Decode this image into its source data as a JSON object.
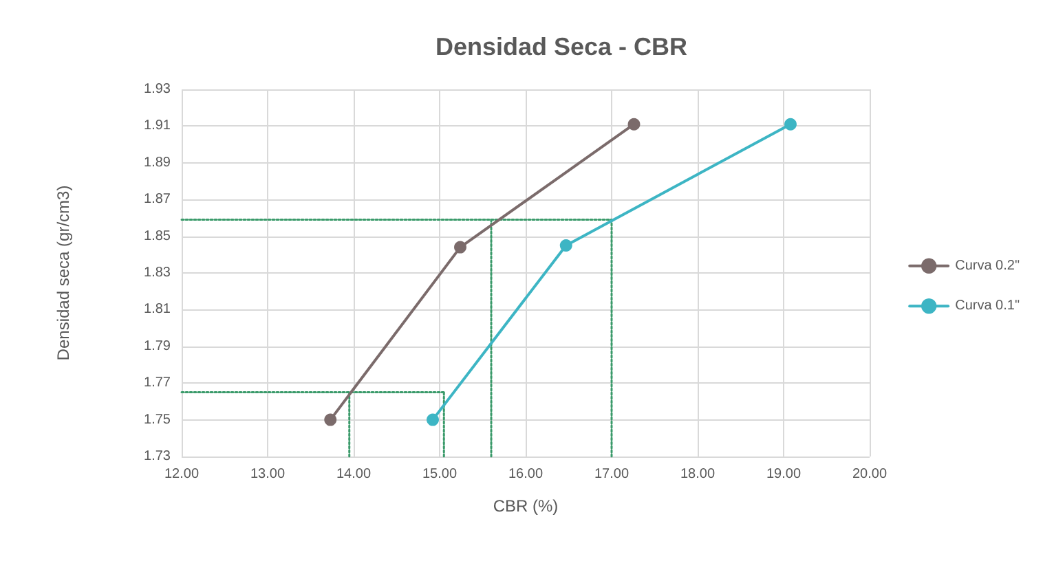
{
  "chart_data": {
    "type": "line",
    "title": "Densidad Seca - CBR",
    "xlabel": "CBR (%)",
    "ylabel": "Densidad seca (gr/cm3)",
    "xlim": [
      12,
      20
    ],
    "xticks": [
      {
        "value": 12,
        "label": "12.00"
      },
      {
        "value": 13,
        "label": "13.00"
      },
      {
        "value": 14,
        "label": "14.00"
      },
      {
        "value": 15,
        "label": "15.00"
      },
      {
        "value": 16,
        "label": "16.00"
      },
      {
        "value": 17,
        "label": "17.00"
      },
      {
        "value": 18,
        "label": "18.00"
      },
      {
        "value": 19,
        "label": "19.00"
      },
      {
        "value": 20,
        "label": "20.00"
      }
    ],
    "ylim": [
      1.73,
      1.93
    ],
    "yticks": [
      1.73,
      1.75,
      1.77,
      1.79,
      1.81,
      1.83,
      1.85,
      1.87,
      1.89,
      1.91,
      1.93
    ],
    "grid": true,
    "legend": "right",
    "marker": "circle",
    "line_style": "solid",
    "series": [
      {
        "name": "Curva 0.2\"",
        "color": "#7b6b6b",
        "x": [
          13.73,
          15.24,
          17.26
        ],
        "values": [
          1.75,
          1.844,
          1.911
        ]
      },
      {
        "name": "Curva 0.1\"",
        "color": "#3db5c4",
        "x": [
          14.92,
          16.47,
          19.08
        ],
        "values": [
          1.75,
          1.845,
          1.911
        ]
      },
      {
        "color": "#3a9a6a",
        "marker": "none",
        "line_style": "dotted",
        "x": [
          12,
          17
        ],
        "values": [
          1.859,
          1.859
        ]
      },
      {
        "color": "#3a9a6a",
        "marker": "none",
        "line_style": "dotted",
        "x": [
          15.6,
          15.6
        ],
        "values": [
          1.73,
          1.859
        ]
      },
      {
        "color": "#3a9a6a",
        "marker": "none",
        "line_style": "dotted",
        "x": [
          17,
          17
        ],
        "values": [
          1.73,
          1.859
        ]
      },
      {
        "color": "#3a9a6a",
        "marker": "none",
        "line_style": "dotted",
        "x": [
          12,
          15.05
        ],
        "values": [
          1.765,
          1.765
        ]
      },
      {
        "color": "#3a9a6a",
        "marker": "none",
        "line_style": "dotted",
        "x": [
          13.95,
          13.95
        ],
        "values": [
          1.73,
          1.765
        ]
      },
      {
        "color": "#3a9a6a",
        "marker": "none",
        "line_style": "dotted",
        "x": [
          15.05,
          15.05
        ],
        "values": [
          1.73,
          1.765
        ]
      }
    ]
  }
}
